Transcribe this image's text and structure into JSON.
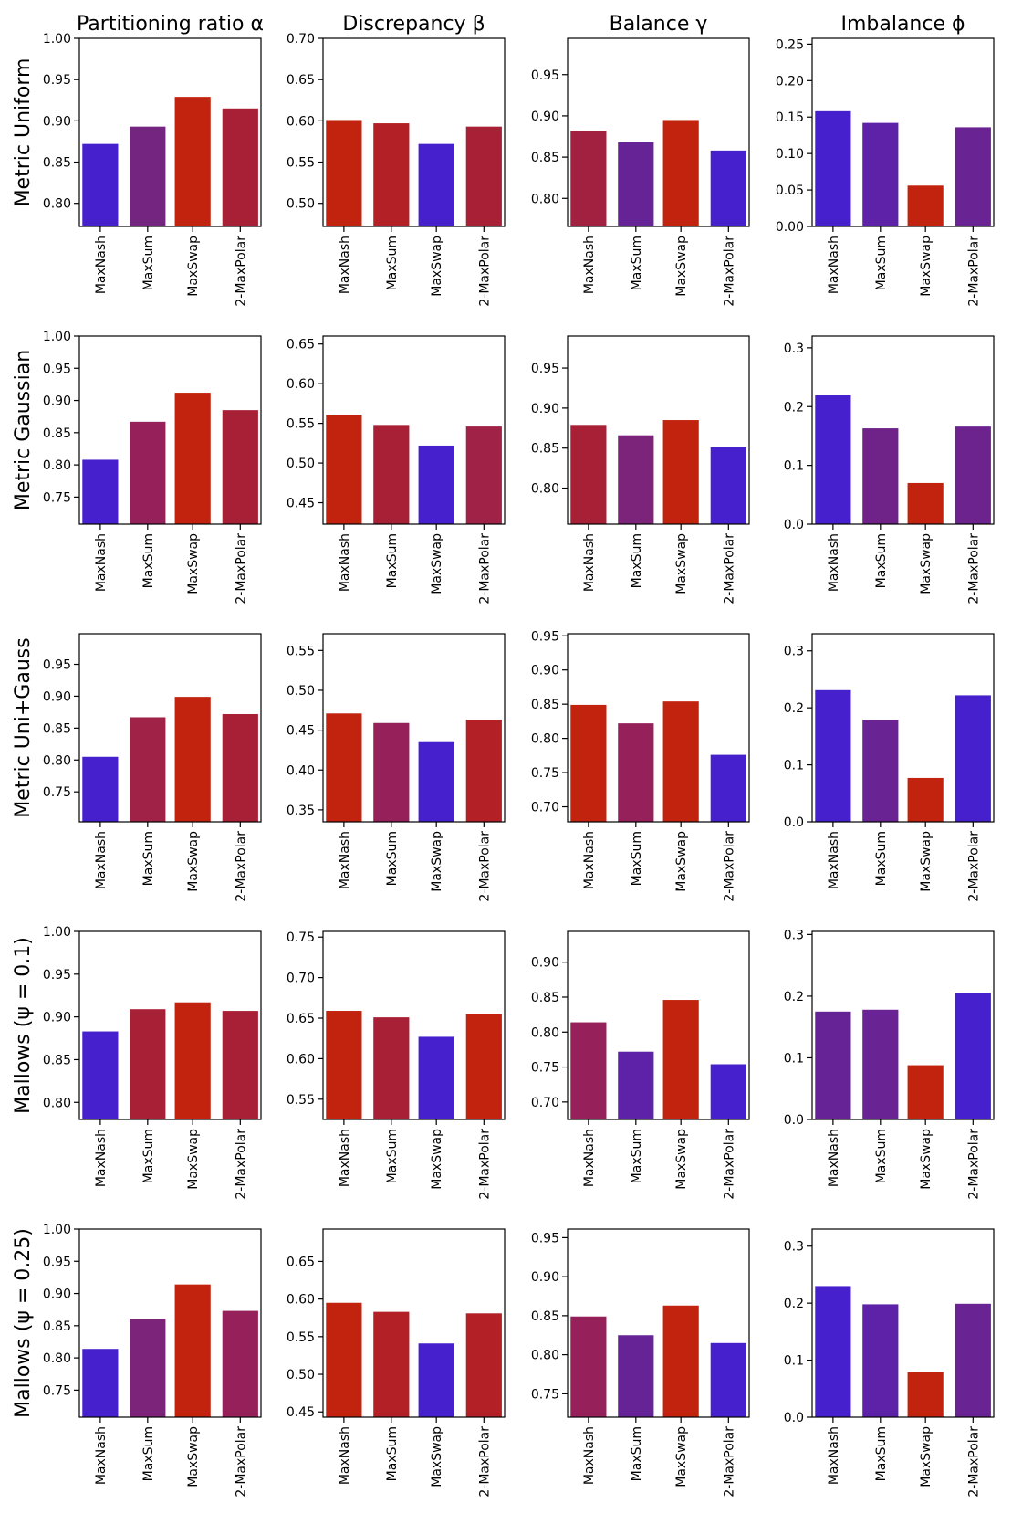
{
  "chart_data": {
    "type": "bar",
    "columns": [
      "Partitioning ratio α",
      "Discrepancy β",
      "Balance γ",
      "Imbalance ϕ"
    ],
    "rows": [
      "Metric Uniform",
      "Metric Gaussian",
      "Metric Uni+Gauss",
      "Mallows (ψ = 0.1)",
      "Mallows (ψ = 0.25)"
    ],
    "categories": [
      "MaxNash",
      "MaxSum",
      "MaxSwap",
      "2-MaxPolar"
    ],
    "panels": [
      [
        {
          "ylim": [
            0.772,
            1.0
          ],
          "ticks": [
            0.8,
            0.85,
            0.9,
            0.95,
            1.0
          ],
          "tick_labels": [
            "0.80",
            "0.85",
            "0.90",
            "0.95",
            "1.00"
          ],
          "values": [
            0.872,
            0.893,
            0.929,
            0.915
          ],
          "colors": [
            "#4620cc",
            "#742580",
            "#c2230f",
            "#a82035"
          ]
        },
        {
          "ylim": [
            0.472,
            0.7
          ],
          "ticks": [
            0.5,
            0.55,
            0.6,
            0.65,
            0.7
          ],
          "tick_labels": [
            "0.50",
            "0.55",
            "0.60",
            "0.65",
            "0.70"
          ],
          "values": [
            0.601,
            0.597,
            0.572,
            0.593
          ],
          "colors": [
            "#c2230f",
            "#b32127",
            "#4620cc",
            "#a82035"
          ]
        },
        {
          "ylim": [
            0.766,
            0.994
          ],
          "ticks": [
            0.8,
            0.85,
            0.9,
            0.95
          ],
          "tick_labels": [
            "0.80",
            "0.85",
            "0.90",
            "0.95"
          ],
          "values": [
            0.882,
            0.868,
            0.895,
            0.858
          ],
          "colors": [
            "#a32140",
            "#662396",
            "#c2230f",
            "#4620cc"
          ]
        },
        {
          "ylim": [
            0.0,
            0.258
          ],
          "ticks": [
            0.0,
            0.05,
            0.1,
            0.15,
            0.2,
            0.25
          ],
          "tick_labels": [
            "0.00",
            "0.05",
            "0.10",
            "0.15",
            "0.20",
            "0.25"
          ],
          "values": [
            0.158,
            0.142,
            0.056,
            0.136
          ],
          "colors": [
            "#4620cc",
            "#5d22a8",
            "#c2230f",
            "#6a2393"
          ]
        }
      ],
      [
        {
          "ylim": [
            0.708,
            1.0
          ],
          "ticks": [
            0.75,
            0.8,
            0.85,
            0.9,
            0.95,
            1.0
          ],
          "tick_labels": [
            "0.75",
            "0.80",
            "0.85",
            "0.90",
            "0.95",
            "1.00"
          ],
          "values": [
            0.808,
            0.867,
            0.912,
            0.885
          ],
          "colors": [
            "#4620cc",
            "#96215a",
            "#c2230f",
            "#a82035"
          ]
        },
        {
          "ylim": [
            0.423,
            0.66
          ],
          "ticks": [
            0.45,
            0.5,
            0.55,
            0.6,
            0.65
          ],
          "tick_labels": [
            "0.45",
            "0.50",
            "0.55",
            "0.60",
            "0.65"
          ],
          "values": [
            0.561,
            0.548,
            0.522,
            0.546
          ],
          "colors": [
            "#c2230f",
            "#a82035",
            "#4620cc",
            "#a02246"
          ]
        },
        {
          "ylim": [
            0.755,
            0.99
          ],
          "ticks": [
            0.8,
            0.85,
            0.9,
            0.95
          ],
          "tick_labels": [
            "0.80",
            "0.85",
            "0.90",
            "0.95"
          ],
          "values": [
            0.879,
            0.866,
            0.885,
            0.851
          ],
          "colors": [
            "#a82035",
            "#7c2479",
            "#c2230f",
            "#4620cc"
          ]
        },
        {
          "ylim": [
            0.0,
            0.32
          ],
          "ticks": [
            0.0,
            0.1,
            0.2,
            0.3
          ],
          "tick_labels": [
            "0.0",
            "0.1",
            "0.2",
            "0.3"
          ],
          "values": [
            0.219,
            0.163,
            0.07,
            0.166
          ],
          "colors": [
            "#4620cc",
            "#6f2388",
            "#c2230f",
            "#6d238e"
          ]
        }
      ],
      [
        {
          "ylim": [
            0.703,
            0.998
          ],
          "ticks": [
            0.75,
            0.8,
            0.85,
            0.9,
            0.95
          ],
          "tick_labels": [
            "0.75",
            "0.80",
            "0.85",
            "0.90",
            "0.95"
          ],
          "values": [
            0.805,
            0.867,
            0.899,
            0.872
          ],
          "colors": [
            "#4620cc",
            "#a02246",
            "#c2230f",
            "#a82035"
          ]
        },
        {
          "ylim": [
            0.335,
            0.571
          ],
          "ticks": [
            0.35,
            0.4,
            0.45,
            0.5,
            0.55
          ],
          "tick_labels": [
            "0.35",
            "0.40",
            "0.45",
            "0.50",
            "0.55"
          ],
          "values": [
            0.471,
            0.459,
            0.435,
            0.463
          ],
          "colors": [
            "#c2230f",
            "#96215a",
            "#4620cc",
            "#b32127"
          ]
        },
        {
          "ylim": [
            0.678,
            0.953
          ],
          "ticks": [
            0.7,
            0.75,
            0.8,
            0.85,
            0.9,
            0.95
          ],
          "tick_labels": [
            "0.70",
            "0.75",
            "0.80",
            "0.85",
            "0.90",
            "0.95"
          ],
          "values": [
            0.849,
            0.822,
            0.854,
            0.776
          ],
          "colors": [
            "#c2230f",
            "#96215a",
            "#c2230f",
            "#4620cc"
          ]
        },
        {
          "ylim": [
            0.0,
            0.33
          ],
          "ticks": [
            0.0,
            0.1,
            0.2,
            0.3
          ],
          "tick_labels": [
            "0.0",
            "0.1",
            "0.2",
            "0.3"
          ],
          "values": [
            0.231,
            0.179,
            0.077,
            0.222
          ],
          "colors": [
            "#4620cc",
            "#6a2393",
            "#c2230f",
            "#4620cc"
          ]
        }
      ],
      [
        {
          "ylim": [
            0.78,
            1.0
          ],
          "ticks": [
            0.8,
            0.85,
            0.9,
            0.95,
            1.0
          ],
          "tick_labels": [
            "0.80",
            "0.85",
            "0.90",
            "0.95",
            "1.00"
          ],
          "values": [
            0.883,
            0.909,
            0.917,
            0.907
          ],
          "colors": [
            "#4620cc",
            "#a82035",
            "#c2230f",
            "#a82035"
          ]
        },
        {
          "ylim": [
            0.525,
            0.757
          ],
          "ticks": [
            0.55,
            0.6,
            0.65,
            0.7,
            0.75
          ],
          "tick_labels": [
            "0.55",
            "0.60",
            "0.65",
            "0.70",
            "0.75"
          ],
          "values": [
            0.659,
            0.651,
            0.627,
            0.655
          ],
          "colors": [
            "#c2230f",
            "#a82035",
            "#4620cc",
            "#c2230f"
          ]
        },
        {
          "ylim": [
            0.675,
            0.944
          ],
          "ticks": [
            0.7,
            0.75,
            0.8,
            0.85,
            0.9
          ],
          "tick_labels": [
            "0.70",
            "0.75",
            "0.80",
            "0.85",
            "0.90"
          ],
          "values": [
            0.814,
            0.772,
            0.846,
            0.754
          ],
          "colors": [
            "#96215a",
            "#5d22a8",
            "#c2230f",
            "#4620cc"
          ]
        },
        {
          "ylim": [
            0.0,
            0.305
          ],
          "ticks": [
            0.0,
            0.1,
            0.2,
            0.3
          ],
          "tick_labels": [
            "0.0",
            "0.1",
            "0.2",
            "0.3"
          ],
          "values": [
            0.175,
            0.178,
            0.088,
            0.205
          ],
          "colors": [
            "#662396",
            "#6a2393",
            "#c2230f",
            "#4620cc"
          ]
        }
      ],
      [
        {
          "ylim": [
            0.708,
            1.0
          ],
          "ticks": [
            0.75,
            0.8,
            0.85,
            0.9,
            0.95,
            1.0
          ],
          "tick_labels": [
            "0.75",
            "0.80",
            "0.85",
            "0.90",
            "0.95",
            "1.00"
          ],
          "values": [
            0.814,
            0.861,
            0.914,
            0.873
          ],
          "colors": [
            "#4620cc",
            "#7c2479",
            "#c2230f",
            "#96215a"
          ]
        },
        {
          "ylim": [
            0.443,
            0.693
          ],
          "ticks": [
            0.45,
            0.5,
            0.55,
            0.6,
            0.65
          ],
          "tick_labels": [
            "0.45",
            "0.50",
            "0.55",
            "0.60",
            "0.65"
          ],
          "values": [
            0.595,
            0.583,
            0.541,
            0.581
          ],
          "colors": [
            "#c2230f",
            "#b32127",
            "#4620cc",
            "#b32127"
          ]
        },
        {
          "ylim": [
            0.72,
            0.961
          ],
          "ticks": [
            0.75,
            0.8,
            0.85,
            0.9,
            0.95
          ],
          "tick_labels": [
            "0.75",
            "0.80",
            "0.85",
            "0.90",
            "0.95"
          ],
          "values": [
            0.849,
            0.825,
            0.863,
            0.815
          ],
          "colors": [
            "#96215a",
            "#662396",
            "#c2230f",
            "#4620cc"
          ]
        },
        {
          "ylim": [
            0.0,
            0.33
          ],
          "ticks": [
            0.0,
            0.1,
            0.2,
            0.3
          ],
          "tick_labels": [
            "0.0",
            "0.1",
            "0.2",
            "0.3"
          ],
          "values": [
            0.23,
            0.198,
            0.079,
            0.199
          ],
          "colors": [
            "#4620cc",
            "#5d22a8",
            "#c2230f",
            "#6a2393"
          ]
        }
      ]
    ]
  }
}
